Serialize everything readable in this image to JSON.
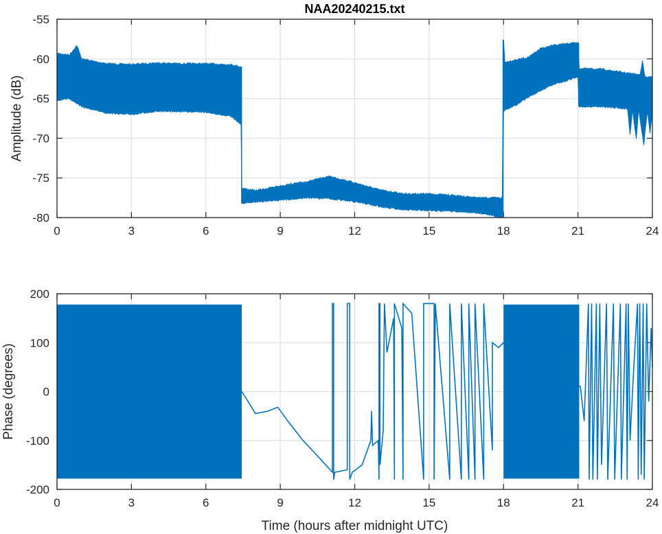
{
  "chart_data": [
    {
      "type": "line",
      "title": "NAA20240215.txt",
      "xlabel": "",
      "ylabel": "Amplitude (dB)",
      "xlim": [
        0,
        24
      ],
      "ylim": [
        -80,
        -55
      ],
      "xticks": [
        "0",
        "3",
        "6",
        "9",
        "12",
        "15",
        "18",
        "21",
        "24"
      ],
      "yticks": [
        "-55",
        "-60",
        "-65",
        "-70",
        "-75",
        "-80"
      ],
      "grid": true,
      "color": "#0072BD",
      "series": [
        {
          "name": "upper envelope",
          "points": [
            [
              0,
              -59.3
            ],
            [
              0.5,
              -59.5
            ],
            [
              0.8,
              -58.3
            ],
            [
              1,
              -60
            ],
            [
              2,
              -60.6
            ],
            [
              3,
              -60.7
            ],
            [
              4,
              -60.5
            ],
            [
              5,
              -60.6
            ],
            [
              6,
              -60.6
            ],
            [
              7,
              -60.7
            ],
            [
              7.42,
              -61
            ],
            [
              7.45,
              -76.3
            ],
            [
              8,
              -76.6
            ],
            [
              9,
              -76
            ],
            [
              10,
              -75.5
            ],
            [
              11,
              -74.8
            ],
            [
              12,
              -75.6
            ],
            [
              13,
              -76.5
            ],
            [
              14,
              -77
            ],
            [
              15,
              -77
            ],
            [
              16,
              -77.2
            ],
            [
              17,
              -77.5
            ],
            [
              17.95,
              -77.5
            ],
            [
              18,
              -57.6
            ],
            [
              18.05,
              -60.4
            ],
            [
              19,
              -59.8
            ],
            [
              19.5,
              -58.7
            ],
            [
              20,
              -58.3
            ],
            [
              21,
              -57.9
            ],
            [
              21.05,
              -61.2
            ],
            [
              22,
              -61.3
            ],
            [
              23,
              -61.8
            ],
            [
              23.5,
              -62
            ],
            [
              23.6,
              -60.3
            ],
            [
              23.7,
              -62.3
            ],
            [
              24,
              -62.3
            ]
          ]
        },
        {
          "name": "lower envelope",
          "points": [
            [
              0,
              -65.2
            ],
            [
              0.5,
              -65
            ],
            [
              1,
              -66
            ],
            [
              2,
              -66.8
            ],
            [
              3,
              -67
            ],
            [
              4,
              -66.6
            ],
            [
              5,
              -66.6
            ],
            [
              6,
              -66.7
            ],
            [
              7,
              -67.2
            ],
            [
              7.42,
              -68.2
            ],
            [
              7.45,
              -78.2
            ],
            [
              8,
              -78
            ],
            [
              9,
              -77.8
            ],
            [
              10,
              -77.5
            ],
            [
              11,
              -77.6
            ],
            [
              12,
              -78
            ],
            [
              13,
              -78.6
            ],
            [
              14,
              -79
            ],
            [
              15,
              -79.1
            ],
            [
              16,
              -79.2
            ],
            [
              17,
              -79.4
            ],
            [
              17.95,
              -80
            ],
            [
              18,
              -66.5
            ],
            [
              18.5,
              -65.8
            ],
            [
              19,
              -64.8
            ],
            [
              20,
              -63.2
            ],
            [
              21,
              -62.3
            ],
            [
              21.05,
              -66
            ],
            [
              22,
              -66
            ],
            [
              23,
              -66.3
            ],
            [
              23.1,
              -69.5
            ],
            [
              23.2,
              -66.4
            ],
            [
              23.35,
              -70
            ],
            [
              23.45,
              -66.4
            ],
            [
              23.65,
              -70.8
            ],
            [
              23.8,
              -66.5
            ],
            [
              23.9,
              -69.3
            ],
            [
              24,
              -67
            ]
          ]
        }
      ]
    },
    {
      "type": "line",
      "title": "",
      "xlabel": "Time (hours after midnight UTC)",
      "ylabel": "Phase (degrees)",
      "xlim": [
        0,
        24
      ],
      "ylim": [
        -200,
        200
      ],
      "xticks": [
        "0",
        "3",
        "6",
        "9",
        "12",
        "15",
        "18",
        "21",
        "24"
      ],
      "yticks": [
        "200",
        "100",
        "0",
        "-100",
        "-200"
      ],
      "grid": true,
      "color": "#0072BD",
      "dense_wrap_intervals": [
        [
          0,
          7.45
        ],
        [
          18,
          21.05
        ]
      ],
      "dense_range": [
        -178,
        178
      ],
      "series": [
        {
          "name": "phase",
          "points": [
            [
              7.45,
              0
            ],
            [
              7.7,
              -20
            ],
            [
              8.0,
              -45
            ],
            [
              8.5,
              -40
            ],
            [
              8.9,
              -32
            ],
            [
              9.3,
              -60
            ],
            [
              9.9,
              -99
            ],
            [
              10.6,
              -137
            ],
            [
              11.1,
              -165
            ],
            [
              11.1,
              180
            ],
            [
              11.15,
              180
            ],
            [
              11.15,
              -180
            ],
            [
              11.2,
              -165
            ],
            [
              11.7,
              -160
            ],
            [
              11.7,
              180
            ],
            [
              11.8,
              180
            ],
            [
              11.8,
              -180
            ],
            [
              11.9,
              -165
            ],
            [
              12.3,
              -150
            ],
            [
              12.65,
              -100
            ],
            [
              12.68,
              -40
            ],
            [
              12.72,
              -110
            ],
            [
              12.95,
              -100
            ],
            [
              12.98,
              -180
            ],
            [
              12.98,
              180
            ],
            [
              13.02,
              180
            ],
            [
              13.02,
              -150
            ],
            [
              13.15,
              -80
            ],
            [
              13.2,
              180
            ],
            [
              13.3,
              80
            ],
            [
              13.57,
              150
            ],
            [
              13.6,
              -180
            ],
            [
              13.6,
              180
            ],
            [
              13.9,
              130
            ],
            [
              13.95,
              -180
            ],
            [
              13.95,
              180
            ],
            [
              14.3,
              160
            ],
            [
              14.78,
              -180
            ],
            [
              14.78,
              180
            ],
            [
              15.2,
              180
            ],
            [
              15.2,
              -180
            ],
            [
              15.25,
              180
            ],
            [
              15.83,
              -180
            ],
            [
              15.83,
              180
            ],
            [
              16.3,
              -180
            ],
            [
              16.3,
              180
            ],
            [
              16.6,
              -180
            ],
            [
              16.6,
              180
            ],
            [
              16.85,
              -180
            ],
            [
              16.85,
              180
            ],
            [
              17.2,
              -180
            ],
            [
              17.2,
              180
            ],
            [
              17.55,
              -120
            ],
            [
              17.55,
              100
            ],
            [
              17.8,
              90
            ],
            [
              18,
              100
            ],
            [
              21.1,
              10
            ],
            [
              21.25,
              -60
            ],
            [
              21.42,
              180
            ],
            [
              21.45,
              -180
            ],
            [
              21.55,
              180
            ],
            [
              21.6,
              -180
            ],
            [
              21.74,
              180
            ],
            [
              21.78,
              -180
            ],
            [
              21.88,
              180
            ],
            [
              21.95,
              -150
            ],
            [
              22.15,
              180
            ],
            [
              22.2,
              -180
            ],
            [
              22.43,
              180
            ],
            [
              22.48,
              -180
            ],
            [
              22.71,
              180
            ],
            [
              22.75,
              -180
            ],
            [
              22.94,
              180
            ],
            [
              22.98,
              -180
            ],
            [
              23.03,
              180
            ],
            [
              23.1,
              -100
            ],
            [
              23.25,
              50
            ],
            [
              23.4,
              180
            ],
            [
              23.43,
              -180
            ],
            [
              23.49,
              180
            ],
            [
              23.55,
              -170
            ],
            [
              23.63,
              180
            ],
            [
              23.67,
              -180
            ],
            [
              23.77,
              180
            ],
            [
              23.85,
              -20
            ],
            [
              23.95,
              130
            ],
            [
              24,
              50
            ]
          ]
        }
      ]
    }
  ]
}
